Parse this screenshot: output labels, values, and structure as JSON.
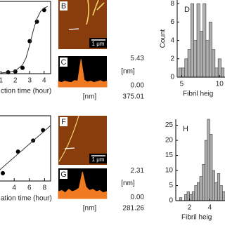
{
  "chart_data": [
    {
      "type": "scatter",
      "xlabel": "ction time (hour)",
      "xlim": [
        0.45,
        4.45
      ],
      "ylim": [
        0,
        1
      ],
      "xticks": [
        1,
        2,
        3,
        4
      ],
      "series": [
        {
          "mode": "points",
          "color": "#000000",
          "x": [
            1.5,
            2,
            2.5,
            3,
            3.5,
            4
          ],
          "values": [
            0.02,
            0.03,
            0.08,
            0.45,
            0.72,
            0.88
          ]
        },
        {
          "mode": "line",
          "color": "#333333",
          "x": [
            1,
            1.5,
            2,
            2.5,
            2.75,
            3,
            3.25,
            3.5,
            3.75,
            4,
            4.25
          ],
          "values": [
            0.01,
            0.02,
            0.04,
            0.12,
            0.22,
            0.4,
            0.6,
            0.76,
            0.86,
            0.91,
            0.93
          ]
        }
      ]
    },
    {
      "type": "area",
      "label": "C",
      "xlabel": "[nm]",
      "ylabel": "[nm]",
      "color": "#f07a22",
      "xlim": [
        0,
        375.01
      ],
      "ylim": [
        -0.3,
        5.9
      ],
      "xticks": [
        375.01
      ],
      "yticks": [
        {
          "value": 0,
          "label": "0.00"
        },
        5.43
      ],
      "x": [
        0,
        25,
        50,
        75,
        100,
        125,
        150,
        175,
        200,
        225,
        250,
        275,
        300,
        325,
        350,
        375
      ],
      "values": [
        0.8,
        0.6,
        0.9,
        0.7,
        0.6,
        1.0,
        0.9,
        5.3,
        1.1,
        0.7,
        0.9,
        0.6,
        0.8,
        1.0,
        0.7,
        0.9
      ]
    },
    {
      "type": "histogram",
      "label": "D",
      "xlabel": "Fibril heig",
      "ylabel": "Count",
      "color": "#b0b0b0",
      "xlim": [
        4.4,
        10.9
      ],
      "ylim": [
        0,
        8.4
      ],
      "xticks": [
        5,
        10
      ],
      "yticks": [
        0,
        2,
        4,
        6,
        8
      ],
      "bins": [
        4.6,
        5.0,
        5.4,
        5.8,
        6.2,
        6.6,
        7.0,
        7.4,
        7.8,
        8.2,
        8.6,
        9.0,
        9.4,
        9.8,
        10.2,
        10.6
      ],
      "values": [
        1,
        1,
        2,
        3,
        8,
        4,
        8,
        5,
        8,
        4,
        6,
        3,
        1,
        2,
        1
      ]
    },
    {
      "type": "scatter",
      "xlabel": "ation time (hour)",
      "xlim": [
        1.2,
        8.8
      ],
      "ylim": [
        0,
        1
      ],
      "xticks": [
        4,
        6,
        8
      ],
      "series": [
        {
          "mode": "points",
          "color": "#000000",
          "x": [
            2.5,
            4.5,
            6.5,
            7.8
          ],
          "values": [
            0.12,
            0.45,
            0.62,
            0.78
          ]
        },
        {
          "mode": "line",
          "color": "#333333",
          "x": [
            1.2,
            8.8
          ],
          "values": [
            0.08,
            0.85
          ]
        }
      ]
    },
    {
      "type": "area",
      "label": "G",
      "xlabel": "[nm]",
      "ylabel": "[nm]",
      "color": "#f07a22",
      "xlim": [
        0,
        281.26
      ],
      "ylim": [
        -0.1,
        2.5
      ],
      "xticks": [
        281.26
      ],
      "yticks": [
        {
          "value": 0,
          "label": "0.00"
        },
        2.31
      ],
      "x": [
        0,
        20,
        40,
        60,
        80,
        100,
        120,
        140,
        160,
        180,
        200,
        220,
        240,
        260,
        280
      ],
      "values": [
        0.5,
        0.6,
        0.4,
        0.7,
        0.5,
        0.6,
        0.8,
        2.2,
        0.9,
        0.6,
        0.7,
        0.5,
        0.6,
        0.4,
        0.5
      ]
    },
    {
      "type": "histogram",
      "label": "H",
      "xlabel": "Fibril heig",
      "color": "#b0b0b0",
      "xlim": [
        0.64,
        5.64
      ],
      "ylim": [
        0,
        27
      ],
      "xticks": [
        2,
        4
      ],
      "yticks": [
        0,
        5,
        10,
        15,
        20,
        25
      ],
      "bins": [
        1.0,
        1.25,
        1.5,
        1.75,
        2.0,
        2.25,
        2.5,
        2.75,
        3.0,
        3.25,
        3.5,
        3.75,
        4.0,
        4.25,
        4.5,
        4.75,
        5.0,
        5.25,
        5.5
      ],
      "values": [
        1,
        0,
        2,
        3,
        2,
        3,
        5,
        6,
        8,
        12,
        20,
        27,
        22,
        10,
        6,
        9,
        5,
        3
      ]
    }
  ],
  "images": [
    {
      "label": "B",
      "scale": "1 μm"
    },
    {
      "label": "F",
      "scale": "1 μm"
    }
  ]
}
